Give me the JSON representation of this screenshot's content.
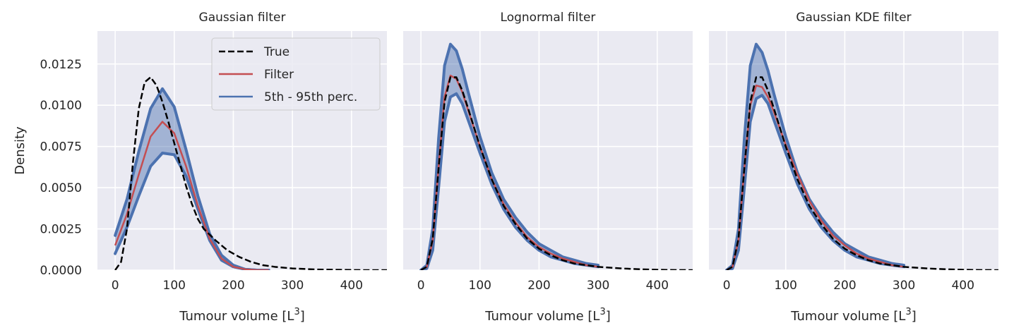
{
  "chart_data": [
    {
      "type": "line",
      "title": "Gaussian filter",
      "xlabel": "Tumour volume [L",
      "xlabel_sup": "3",
      "xlabel_close": "]",
      "ylabel": "Density",
      "xlim": [
        -30,
        460
      ],
      "ylim": [
        0,
        0.0145
      ],
      "xticks": [
        0,
        100,
        200,
        300,
        400
      ],
      "yticks": [
        0.0,
        0.0025,
        0.005,
        0.0075,
        0.01,
        0.0125
      ],
      "ytick_labels": [
        "0.0000",
        "0.0025",
        "0.0050",
        "0.0075",
        "0.0100",
        "0.0125"
      ],
      "grid": true,
      "legend": {
        "placement": "top-right",
        "entries": [
          {
            "label": "True",
            "color": "#000000",
            "style": "dashed"
          },
          {
            "label": "Filter",
            "color": "#c44e52",
            "style": "solid"
          },
          {
            "label": "5th - 95th perc.",
            "color": "#4c72b0",
            "style": "solid"
          }
        ]
      },
      "true_x": [
        0,
        10,
        20,
        30,
        40,
        50,
        60,
        70,
        80,
        90,
        100,
        110,
        120,
        130,
        140,
        150,
        170,
        190,
        210,
        230,
        250,
        270,
        300,
        340,
        380,
        420,
        460
      ],
      "true_y": [
        0.0,
        0.0005,
        0.0025,
        0.0065,
        0.0098,
        0.0114,
        0.0117,
        0.0112,
        0.0102,
        0.009,
        0.0077,
        0.0064,
        0.0051,
        0.004,
        0.0031,
        0.0025,
        0.0018,
        0.0012,
        0.0008,
        0.0005,
        0.0003,
        0.0002,
        0.0001,
        4e-05,
        2e-05,
        0.0,
        0.0
      ],
      "filter_x": [
        0,
        20,
        40,
        60,
        80,
        100,
        120,
        140,
        160,
        180,
        200,
        220,
        240,
        260
      ],
      "filter_y": [
        0.0015,
        0.0034,
        0.0058,
        0.0081,
        0.009,
        0.0083,
        0.0063,
        0.0039,
        0.0019,
        0.0007,
        0.0002,
        5e-05,
        0.0,
        0.0
      ],
      "upper_x": [
        0,
        20,
        40,
        60,
        80,
        100,
        120,
        140,
        160,
        180,
        200,
        220,
        240,
        260
      ],
      "upper_y": [
        0.0021,
        0.0043,
        0.0072,
        0.0098,
        0.011,
        0.0099,
        0.0073,
        0.0045,
        0.0022,
        0.0009,
        0.0003,
        5e-05,
        0.0,
        0.0
      ],
      "lower_x": [
        0,
        20,
        40,
        60,
        80,
        100,
        120,
        140,
        160,
        180,
        200,
        220,
        240,
        260
      ],
      "lower_y": [
        0.001,
        0.0026,
        0.0045,
        0.0063,
        0.0071,
        0.007,
        0.0057,
        0.0037,
        0.0018,
        0.0006,
        0.0002,
        5e-05,
        0.0,
        0.0
      ]
    },
    {
      "type": "line",
      "title": "Lognormal filter",
      "xlabel": "Tumour volume [L",
      "xlabel_sup": "3",
      "xlabel_close": "]",
      "ylabel": "",
      "xlim": [
        -30,
        460
      ],
      "ylim": [
        0,
        0.0145
      ],
      "xticks": [
        0,
        100,
        200,
        300,
        400
      ],
      "grid": true,
      "true_x": [
        0,
        10,
        20,
        30,
        40,
        50,
        60,
        70,
        80,
        100,
        120,
        140,
        160,
        180,
        200,
        220,
        240,
        260,
        300,
        340,
        380,
        420,
        460
      ],
      "true_y": [
        0.0,
        0.0002,
        0.0019,
        0.0062,
        0.0102,
        0.0117,
        0.0117,
        0.0109,
        0.0098,
        0.0075,
        0.0055,
        0.0039,
        0.0028,
        0.0019,
        0.0013,
        0.0009,
        0.0006,
        0.0004,
        0.0002,
        0.0001,
        4e-05,
        1e-05,
        0.0
      ],
      "filter_x": [
        0,
        10,
        20,
        30,
        40,
        50,
        60,
        70,
        80,
        100,
        120,
        140,
        160,
        180,
        200,
        220,
        240,
        260,
        280,
        300
      ],
      "filter_y": [
        0.0,
        0.0002,
        0.0018,
        0.0063,
        0.0105,
        0.0118,
        0.0116,
        0.0108,
        0.0097,
        0.0075,
        0.0055,
        0.004,
        0.0029,
        0.002,
        0.0014,
        0.001,
        0.0007,
        0.0005,
        0.0003,
        0.0002
      ],
      "upper_x": [
        0,
        10,
        20,
        30,
        40,
        50,
        60,
        70,
        80,
        100,
        120,
        140,
        160,
        180,
        200,
        220,
        240,
        260,
        280,
        300
      ],
      "upper_y": [
        0.0,
        0.0003,
        0.0025,
        0.008,
        0.0124,
        0.0137,
        0.0133,
        0.0122,
        0.0108,
        0.0081,
        0.0059,
        0.0043,
        0.0032,
        0.0023,
        0.0016,
        0.0012,
        0.0008,
        0.0006,
        0.0004,
        0.0003
      ],
      "lower_x": [
        0,
        10,
        20,
        30,
        40,
        50,
        60,
        70,
        80,
        100,
        120,
        140,
        160,
        180,
        200,
        220,
        240,
        260,
        280,
        300
      ],
      "lower_y": [
        0.0,
        0.0001,
        0.0012,
        0.005,
        0.009,
        0.0105,
        0.0107,
        0.0101,
        0.0091,
        0.0071,
        0.0052,
        0.0037,
        0.0026,
        0.0018,
        0.0012,
        0.0008,
        0.0006,
        0.0004,
        0.0003,
        0.0002
      ]
    },
    {
      "type": "line",
      "title": "Gaussian KDE filter",
      "xlabel": "Tumour volume [L",
      "xlabel_sup": "3",
      "xlabel_close": "]",
      "ylabel": "",
      "xlim": [
        -30,
        460
      ],
      "ylim": [
        0,
        0.0145
      ],
      "xticks": [
        0,
        100,
        200,
        300,
        400
      ],
      "grid": true,
      "true_x": [
        0,
        10,
        20,
        30,
        40,
        50,
        60,
        70,
        80,
        100,
        120,
        140,
        160,
        180,
        200,
        220,
        240,
        260,
        300,
        340,
        380,
        420,
        460
      ],
      "true_y": [
        0.0,
        0.0002,
        0.0019,
        0.0062,
        0.0102,
        0.0117,
        0.0117,
        0.0109,
        0.0098,
        0.0075,
        0.0055,
        0.0039,
        0.0028,
        0.0019,
        0.0013,
        0.0009,
        0.0006,
        0.0004,
        0.0002,
        0.0001,
        4e-05,
        1e-05,
        0.0
      ],
      "filter_x": [
        0,
        10,
        20,
        30,
        40,
        50,
        60,
        70,
        80,
        100,
        120,
        140,
        160,
        180,
        200,
        220,
        240,
        260,
        280,
        300
      ],
      "filter_y": [
        0.0,
        0.0002,
        0.0018,
        0.0062,
        0.01,
        0.0112,
        0.0111,
        0.0105,
        0.0096,
        0.0076,
        0.0058,
        0.0042,
        0.003,
        0.0021,
        0.0015,
        0.001,
        0.0007,
        0.0005,
        0.0003,
        0.0002
      ],
      "upper_x": [
        0,
        10,
        20,
        30,
        40,
        50,
        60,
        70,
        80,
        100,
        120,
        140,
        160,
        180,
        200,
        220,
        240,
        260,
        280,
        300
      ],
      "upper_y": [
        0.0,
        0.0003,
        0.0025,
        0.008,
        0.0124,
        0.0137,
        0.0132,
        0.0121,
        0.0107,
        0.0081,
        0.0059,
        0.0043,
        0.0032,
        0.0023,
        0.0016,
        0.0012,
        0.0008,
        0.0006,
        0.0004,
        0.0003
      ],
      "lower_x": [
        0,
        10,
        20,
        30,
        40,
        50,
        60,
        70,
        80,
        100,
        120,
        140,
        160,
        180,
        200,
        220,
        240,
        260,
        280,
        300
      ],
      "lower_y": [
        0.0,
        0.0001,
        0.0012,
        0.005,
        0.009,
        0.0104,
        0.0106,
        0.0101,
        0.0091,
        0.0071,
        0.0052,
        0.0037,
        0.0026,
        0.0018,
        0.0012,
        0.0008,
        0.0006,
        0.0004,
        0.0003,
        0.0002
      ]
    }
  ],
  "colors": {
    "background": "#eaeaf2",
    "grid": "#ffffff",
    "true_line": "#000000",
    "filter_line": "#c44e52",
    "band": "#4c72b0"
  }
}
